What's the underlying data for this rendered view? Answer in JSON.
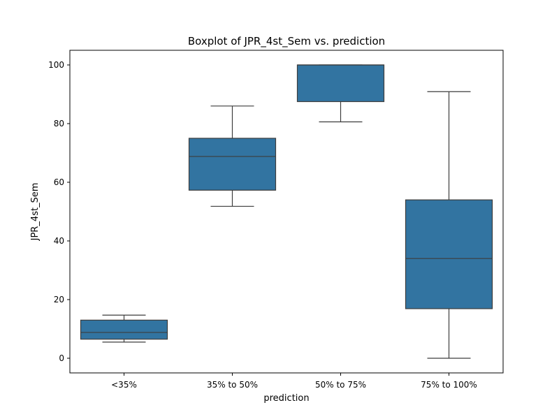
{
  "chart_data": {
    "type": "box",
    "title": "Boxplot of JPR_4st_Sem vs. prediction",
    "xlabel": "prediction",
    "ylabel": "JPR_4st_Sem",
    "ylim": [
      -5,
      105
    ],
    "yticks": [
      0,
      20,
      40,
      60,
      80,
      100
    ],
    "grid": false,
    "box_color": "#3274a1",
    "line_color": "#3d3d3d",
    "categories": [
      "<35%",
      "35% to 50%",
      "50% to 75%",
      "75% to 100%"
    ],
    "boxes": [
      {
        "category": "<35%",
        "whisker_low": 5.5,
        "q1": 6.5,
        "median": 8.8,
        "q3": 13.0,
        "whisker_high": 14.7
      },
      {
        "category": "35% to 50%",
        "whisker_low": 51.8,
        "q1": 57.3,
        "median": 68.8,
        "q3": 75.0,
        "whisker_high": 86.0
      },
      {
        "category": "50% to 75%",
        "whisker_low": 80.6,
        "q1": 87.5,
        "median": 100.0,
        "q3": 100.0,
        "whisker_high": 100.0
      },
      {
        "category": "75% to 100%",
        "whisker_low": 0.0,
        "q1": 16.9,
        "median": 34.0,
        "q3": 54.0,
        "whisker_high": 90.9
      }
    ]
  }
}
